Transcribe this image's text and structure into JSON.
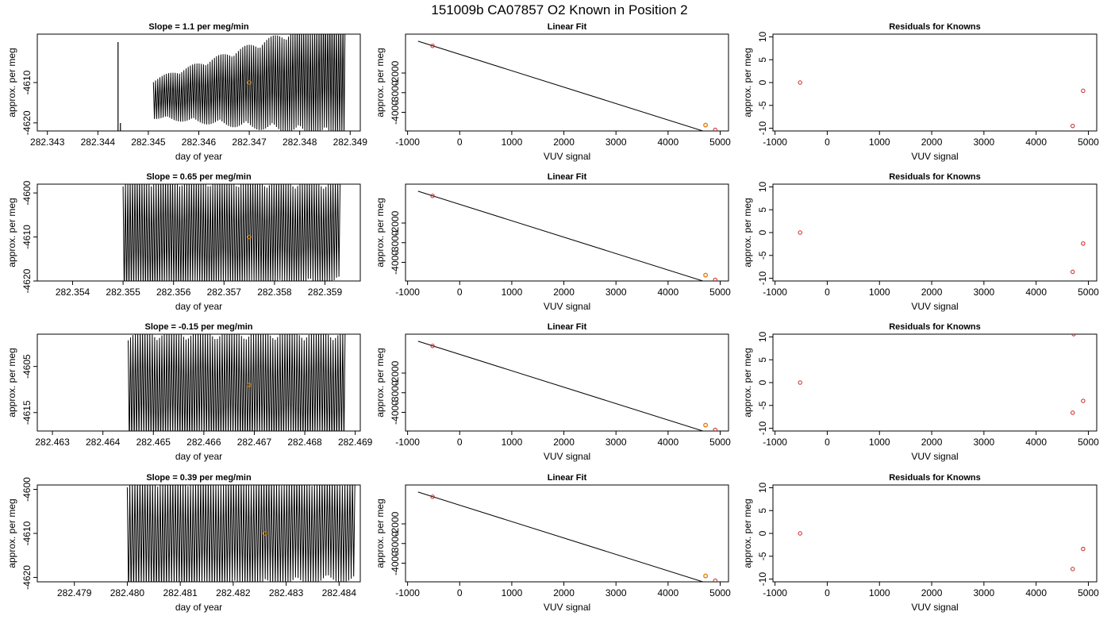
{
  "figure": {
    "title": "151009b     CA07857   O2 Known in Position  2"
  },
  "colors": {
    "trace": "#000000",
    "fit_line": "#000000",
    "known_point": "#cc2222",
    "highlight_point": "#e08a00"
  },
  "chart_data": [
    {
      "type": "line",
      "row": 0,
      "panel": "time-series",
      "title": "Slope =  1.1  per meg/min",
      "xlabel": "day of year",
      "ylabel": "approx. per meg",
      "xlim": [
        282.3428,
        282.3492
      ],
      "ylim": [
        -4622,
        -4598
      ],
      "xticks": [
        "282.343",
        "282.344",
        "282.345",
        "282.346",
        "282.347",
        "282.348",
        "282.349"
      ],
      "yticks": [
        "-4610",
        "-4620"
      ],
      "spike_x": 282.3444,
      "trace_start": 282.3451,
      "trace_end": 282.3489,
      "cycles": 88,
      "amp_start": 5,
      "amp_end": 16,
      "center_start": -4614,
      "center_end": -4608,
      "highlight": {
        "x": 282.347,
        "y": -4610
      }
    },
    {
      "type": "scatter",
      "row": 0,
      "panel": "linear-fit",
      "title": "Linear Fit",
      "xlabel": "VUV signal",
      "ylabel": "approx. per meg",
      "xlim": [
        -1040,
        5160
      ],
      "ylim": [
        -4950,
        -20
      ],
      "xticks": [
        "-1000",
        "0",
        "1000",
        "2000",
        "3000",
        "4000",
        "5000"
      ],
      "yticks": [
        "-2000",
        "-3000",
        "-4000"
      ],
      "fit": {
        "x": [
          -800,
          4920
        ],
        "y": [
          -380,
          -5160
        ]
      },
      "points": [
        {
          "x": -520,
          "y": -620
        },
        {
          "x": 4720,
          "y": -4650
        },
        {
          "x": 4905,
          "y": -4890
        }
      ],
      "highlight": {
        "x": 4720,
        "y": -4650
      }
    },
    {
      "type": "scatter",
      "row": 0,
      "panel": "residuals",
      "title": "Residuals for Knowns",
      "xlabel": "VUV signal",
      "ylabel": "approx. per meg",
      "xlim": [
        -1040,
        5160
      ],
      "ylim": [
        -10.6,
        10.6
      ],
      "xticks": [
        "-1000",
        "0",
        "1000",
        "2000",
        "3000",
        "4000",
        "5000"
      ],
      "yticks": [
        "10",
        "5",
        "0",
        "-5",
        "-10"
      ],
      "points": [
        {
          "x": -520,
          "y": 0
        },
        {
          "x": 4700,
          "y": -9.5
        },
        {
          "x": 4900,
          "y": -1.8
        }
      ]
    },
    {
      "type": "line",
      "row": 1,
      "panel": "time-series",
      "title": "Slope =  0.65  per meg/min",
      "xlabel": "day of year",
      "ylabel": "approx. per meg",
      "xlim": [
        282.3533,
        282.3597
      ],
      "ylim": [
        -4620,
        -4598
      ],
      "xticks": [
        "282.354",
        "282.355",
        "282.356",
        "282.357",
        "282.358",
        "282.359"
      ],
      "yticks": [
        "-4600",
        "-4610",
        "-4620"
      ],
      "trace_start": 282.355,
      "trace_end": 282.3593,
      "cycles": 92,
      "amp_start": 14,
      "amp_end": 12,
      "center_start": -4610,
      "center_end": -4609,
      "highlight": {
        "x": 282.3575,
        "y": -4610
      }
    },
    {
      "type": "scatter",
      "row": 1,
      "panel": "linear-fit",
      "title": "Linear Fit",
      "xlabel": "VUV signal",
      "ylabel": "approx. per meg",
      "xlim": [
        -1040,
        5160
      ],
      "ylim": [
        -4950,
        -20
      ],
      "xticks": [
        "-1000",
        "0",
        "1000",
        "2000",
        "3000",
        "4000",
        "5000"
      ],
      "yticks": [
        "-2000",
        "-3000",
        "-4000"
      ],
      "fit": {
        "x": [
          -800,
          4920
        ],
        "y": [
          -380,
          -5160
        ]
      },
      "points": [
        {
          "x": -520,
          "y": -620
        },
        {
          "x": 4720,
          "y": -4650
        },
        {
          "x": 4905,
          "y": -4890
        }
      ],
      "highlight": {
        "x": 4720,
        "y": -4650
      }
    },
    {
      "type": "scatter",
      "row": 1,
      "panel": "residuals",
      "title": "Residuals for Knowns",
      "xlabel": "VUV signal",
      "ylabel": "approx. per meg",
      "xlim": [
        -1040,
        5160
      ],
      "ylim": [
        -10.6,
        10.6
      ],
      "xticks": [
        "-1000",
        "0",
        "1000",
        "2000",
        "3000",
        "4000",
        "5000"
      ],
      "yticks": [
        "10",
        "5",
        "0",
        "-5",
        "-10"
      ],
      "points": [
        {
          "x": -520,
          "y": 0
        },
        {
          "x": 4700,
          "y": -8.6
        },
        {
          "x": 4900,
          "y": -2.4
        }
      ]
    },
    {
      "type": "line",
      "row": 2,
      "panel": "time-series",
      "title": "Slope =  -0.15  per meg/min",
      "xlabel": "day of year",
      "ylabel": "approx. per meg",
      "xlim": [
        282.4627,
        282.4691
      ],
      "ylim": [
        -4619,
        -4598
      ],
      "xticks": [
        "282.463",
        "282.464",
        "282.465",
        "282.466",
        "282.467",
        "282.468",
        "282.469"
      ],
      "yticks": [
        "-4605",
        "-4615"
      ],
      "trace_start": 282.4645,
      "trace_end": 282.4688,
      "cycles": 90,
      "amp_start": 13,
      "amp_end": 13,
      "center_start": -4610,
      "center_end": -4610,
      "highlight": {
        "x": 282.4669,
        "y": -4609
      }
    },
    {
      "type": "scatter",
      "row": 2,
      "panel": "linear-fit",
      "title": "Linear Fit",
      "xlabel": "VUV signal",
      "ylabel": "approx. per meg",
      "xlim": [
        -1040,
        5160
      ],
      "ylim": [
        -4950,
        -20
      ],
      "xticks": [
        "-1000",
        "0",
        "1000",
        "2000",
        "3000",
        "4000",
        "5000"
      ],
      "yticks": [
        "-2000",
        "-3000",
        "-4000"
      ],
      "fit": {
        "x": [
          -800,
          4920
        ],
        "y": [
          -380,
          -5160
        ]
      },
      "points": [
        {
          "x": -520,
          "y": -620
        },
        {
          "x": 4720,
          "y": -4650
        },
        {
          "x": 4905,
          "y": -4890
        }
      ],
      "highlight": {
        "x": 4720,
        "y": -4650
      }
    },
    {
      "type": "scatter",
      "row": 2,
      "panel": "residuals",
      "title": "Residuals for Knowns",
      "xlabel": "VUV signal",
      "ylabel": "approx. per meg",
      "xlim": [
        -1040,
        5160
      ],
      "ylim": [
        -10.6,
        10.6
      ],
      "xticks": [
        "-1000",
        "0",
        "1000",
        "2000",
        "3000",
        "4000",
        "5000"
      ],
      "yticks": [
        "10",
        "5",
        "0",
        "-5",
        "-10"
      ],
      "points": [
        {
          "x": -520,
          "y": 0
        },
        {
          "x": 4700,
          "y": -6.6
        },
        {
          "x": 4900,
          "y": -4.0
        },
        {
          "x": 4720,
          "y": 10.6
        }
      ]
    },
    {
      "type": "line",
      "row": 3,
      "panel": "time-series",
      "title": "Slope =  0.39  per meg/min",
      "xlabel": "day of year",
      "ylabel": "approx. per meg",
      "xlim": [
        282.4783,
        282.4844
      ],
      "ylim": [
        -4621,
        -4599
      ],
      "xticks": [
        "282.479",
        "282.480",
        "282.481",
        "282.482",
        "282.483",
        "282.484"
      ],
      "yticks": [
        "-4600",
        "-4610",
        "-4620"
      ],
      "trace_start": 282.48,
      "trace_end": 282.4843,
      "cycles": 90,
      "amp_start": 14,
      "amp_end": 12,
      "center_start": -4611,
      "center_end": -4609,
      "highlight": {
        "x": 282.4826,
        "y": -4610
      }
    },
    {
      "type": "scatter",
      "row": 3,
      "panel": "linear-fit",
      "title": "Linear Fit",
      "xlabel": "VUV signal",
      "ylabel": "approx. per meg",
      "xlim": [
        -1040,
        5160
      ],
      "ylim": [
        -4950,
        -20
      ],
      "xticks": [
        "-1000",
        "0",
        "1000",
        "2000",
        "3000",
        "4000",
        "5000"
      ],
      "yticks": [
        "-2000",
        "-3000",
        "-4000"
      ],
      "fit": {
        "x": [
          -800,
          4920
        ],
        "y": [
          -380,
          -5160
        ]
      },
      "points": [
        {
          "x": -520,
          "y": -620
        },
        {
          "x": 4720,
          "y": -4650
        },
        {
          "x": 4905,
          "y": -4890
        }
      ],
      "highlight": {
        "x": 4720,
        "y": -4650
      }
    },
    {
      "type": "scatter",
      "row": 3,
      "panel": "residuals",
      "title": "Residuals for Knowns",
      "xlabel": "VUV signal",
      "ylabel": "approx. per meg",
      "xlim": [
        -1040,
        5160
      ],
      "ylim": [
        -10.6,
        10.6
      ],
      "xticks": [
        "-1000",
        "0",
        "1000",
        "2000",
        "3000",
        "4000",
        "5000"
      ],
      "yticks": [
        "10",
        "5",
        "0",
        "-5",
        "-10"
      ],
      "points": [
        {
          "x": -520,
          "y": 0
        },
        {
          "x": 4700,
          "y": -7.8
        },
        {
          "x": 4900,
          "y": -3.4
        }
      ]
    }
  ]
}
